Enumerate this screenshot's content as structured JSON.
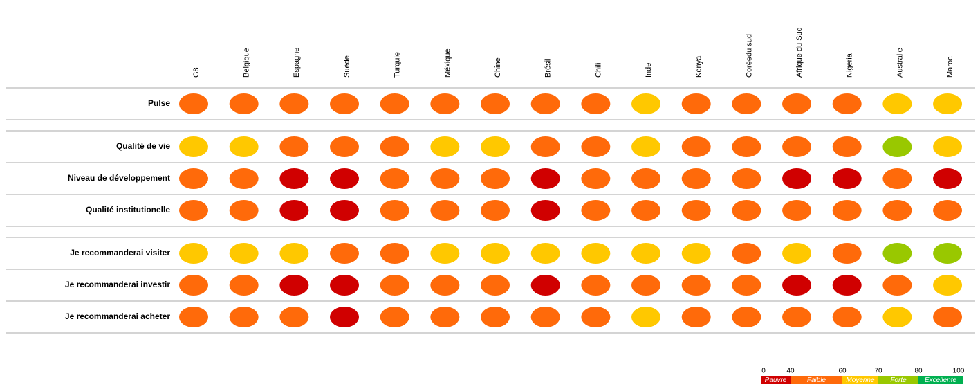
{
  "table": {
    "columns": [
      "G8",
      "Belgique",
      "Espagne",
      "Suède",
      "Turquie",
      "Méxique",
      "Chine",
      "Brésil",
      "Chili",
      "Inde",
      "Kenya",
      "Coréedu sud",
      "Afrique du Sud",
      "Nigeria",
      "Australie",
      "Maroc"
    ],
    "groups": [
      [
        {
          "label": "Pulse",
          "ratings": [
            "Faible",
            "Faible",
            "Faible",
            "Faible",
            "Faible",
            "Faible",
            "Faible",
            "Faible",
            "Faible",
            "Moyenne",
            "Faible",
            "Faible",
            "Faible",
            "Faible",
            "Moyenne",
            "Moyenne"
          ]
        }
      ],
      [
        {
          "label": "Qualité de vie",
          "ratings": [
            "Moyenne",
            "Moyenne",
            "Faible",
            "Faible",
            "Faible",
            "Moyenne",
            "Moyenne",
            "Faible",
            "Faible",
            "Moyenne",
            "Faible",
            "Faible",
            "Faible",
            "Faible",
            "Forte",
            "Moyenne"
          ]
        },
        {
          "label": "Niveau de développement",
          "ratings": [
            "Faible",
            "Faible",
            "Pauvre",
            "Pauvre",
            "Faible",
            "Faible",
            "Faible",
            "Pauvre",
            "Faible",
            "Faible",
            "Faible",
            "Faible",
            "Pauvre",
            "Pauvre",
            "Faible",
            "Pauvre"
          ]
        },
        {
          "label": "Qualité institutionelle",
          "ratings": [
            "Faible",
            "Faible",
            "Pauvre",
            "Pauvre",
            "Faible",
            "Faible",
            "Faible",
            "Pauvre",
            "Faible",
            "Faible",
            "Faible",
            "Faible",
            "Faible",
            "Faible",
            "Faible",
            "Faible"
          ]
        }
      ],
      [
        {
          "label": "Je recommanderai visiter",
          "ratings": [
            "Moyenne",
            "Moyenne",
            "Moyenne",
            "Faible",
            "Faible",
            "Moyenne",
            "Moyenne",
            "Moyenne",
            "Moyenne",
            "Moyenne",
            "Moyenne",
            "Faible",
            "Moyenne",
            "Faible",
            "Forte",
            "Forte"
          ]
        },
        {
          "label": "Je recommanderai investir",
          "ratings": [
            "Faible",
            "Faible",
            "Pauvre",
            "Pauvre",
            "Faible",
            "Faible",
            "Faible",
            "Pauvre",
            "Faible",
            "Faible",
            "Faible",
            "Faible",
            "Pauvre",
            "Pauvre",
            "Faible",
            "Moyenne"
          ]
        },
        {
          "label": "Je recommanderai acheter",
          "ratings": [
            "Faible",
            "Faible",
            "Faible",
            "Pauvre",
            "Faible",
            "Faible",
            "Faible",
            "Faible",
            "Faible",
            "Moyenne",
            "Faible",
            "Faible",
            "Faible",
            "Faible",
            "Moyenne",
            "Faible"
          ]
        }
      ]
    ]
  },
  "legend": {
    "ticks": [
      0,
      40,
      60,
      70,
      80,
      100
    ],
    "levels": [
      {
        "label": "Pauvre",
        "color": "#d00000"
      },
      {
        "label": "Faible",
        "color": "#ff6a0a"
      },
      {
        "label": "Moyenne",
        "color": "#ffc800"
      },
      {
        "label": "Forte",
        "color": "#99c800"
      },
      {
        "label": "Excellente",
        "color": "#00b050"
      }
    ]
  }
}
